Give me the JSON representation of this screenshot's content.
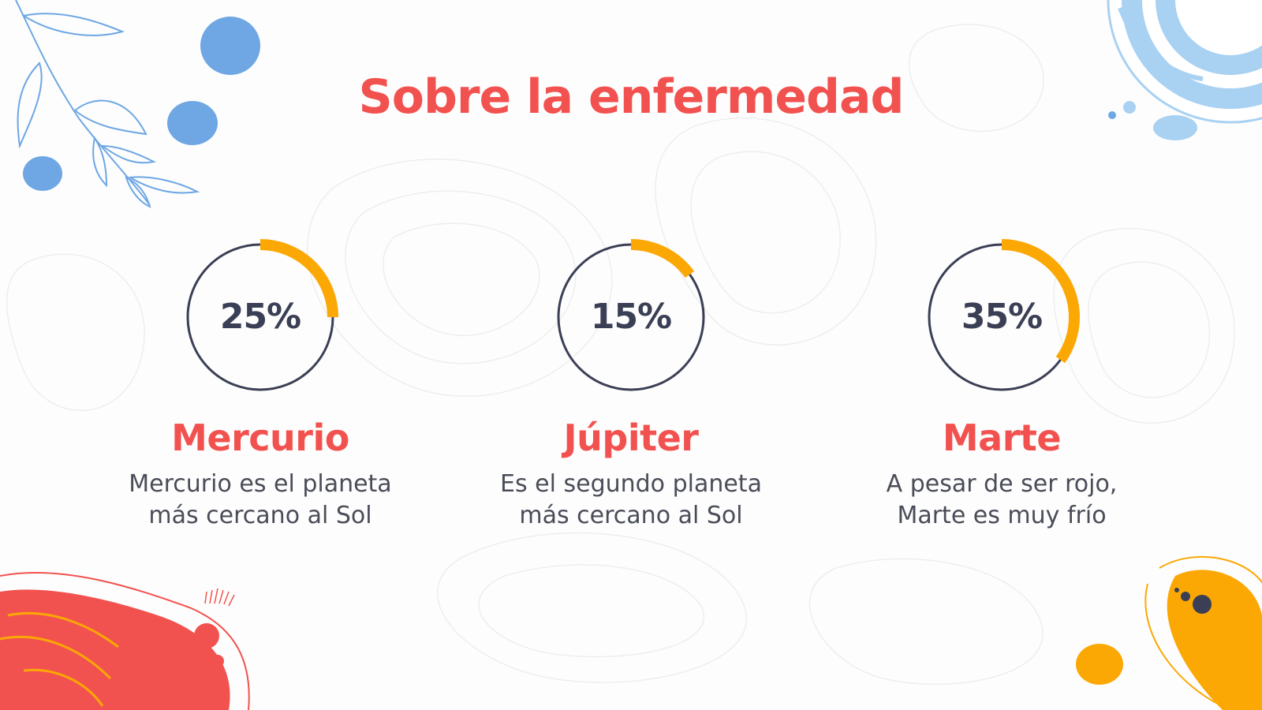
{
  "title": "Sobre la enfermedad",
  "colors": {
    "title": "#f2524f",
    "ring": "#3b3f55",
    "progress": "#fba804",
    "percent_text": "#3b3f55",
    "card_title": "#f2524f",
    "blue": "#6ea7e4",
    "light_blue": "#a9d1f2",
    "red": "#f2524f",
    "yellow": "#fba804"
  },
  "cards": [
    {
      "percent": 25,
      "percent_label": "25%",
      "title": "Mercurio",
      "description": "Mercurio es el planeta\nmás cercano al Sol"
    },
    {
      "percent": 15,
      "percent_label": "15%",
      "title": "Júpiter",
      "description": "Es el segundo planeta\nmás cercano al Sol"
    },
    {
      "percent": 35,
      "percent_label": "35%",
      "title": "Marte",
      "description": "A pesar de ser rojo,\nMarte es muy frío"
    }
  ]
}
